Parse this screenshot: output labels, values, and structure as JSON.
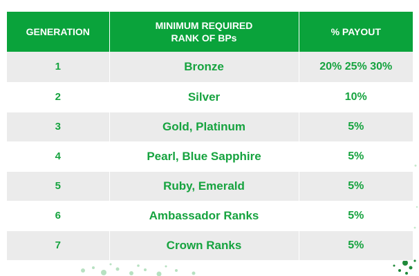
{
  "table": {
    "headers": {
      "generation": "GENERATION",
      "rank_line1": "MINIMUM REQUIRED",
      "rank_line2": "RANK  OF BPs",
      "payout": "% PAYOUT"
    },
    "rows": [
      {
        "generation": "1",
        "rank": "Bronze",
        "payout": "20% 25% 30%"
      },
      {
        "generation": "2",
        "rank": "Silver",
        "payout": "10%"
      },
      {
        "generation": "3",
        "rank": "Gold, Platinum",
        "payout": "5%"
      },
      {
        "generation": "4",
        "rank": "Pearl, Blue Sapphire",
        "payout": "5%"
      },
      {
        "generation": "5",
        "rank": "Ruby, Emerald",
        "payout": "5%"
      },
      {
        "generation": "6",
        "rank": "Ambassador Ranks",
        "payout": "5%"
      },
      {
        "generation": "7",
        "rank": "Crown Ranks",
        "payout": "5%"
      }
    ]
  },
  "colors": {
    "header_bg": "#0aa33b",
    "header_text": "#ffffff",
    "body_text": "#16a33f",
    "row_shade": "#ebebeb"
  }
}
